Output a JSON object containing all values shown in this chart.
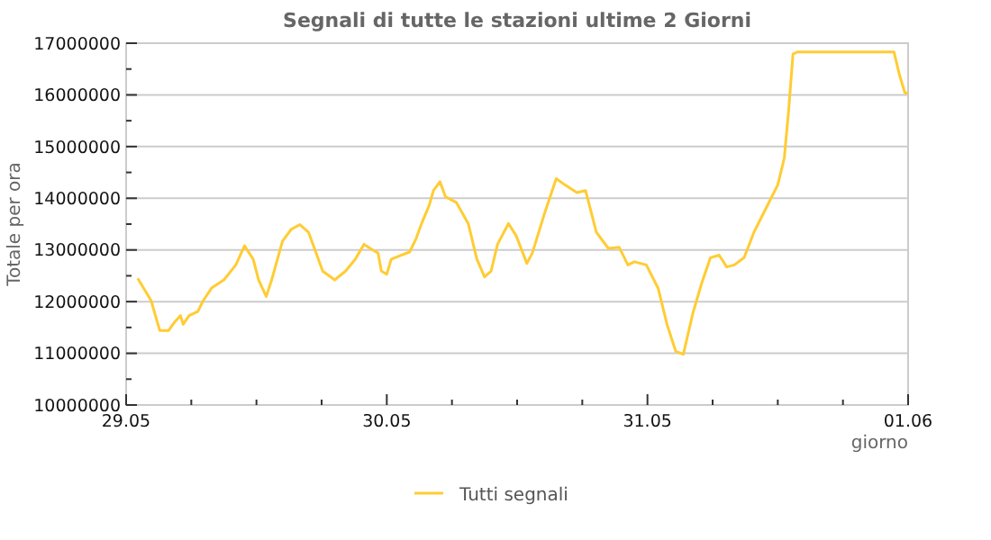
{
  "chart_data": {
    "type": "line",
    "title": "Segnali di tutte le stazioni ultime 2 Giorni",
    "xlabel": "giorno",
    "ylabel": "Totale per ora",
    "x": [
      "--05-29T01:04",
      "--05-29T02:18",
      "--05-29T03:06",
      "--05-29T03:54",
      "--05-29T04:27",
      "--05-29T05:00",
      "--05-29T05:15",
      "--05-29T05:48",
      "--05-29T06:36",
      "--05-29T07:06",
      "--05-29T07:54",
      "--05-29T09:00",
      "--05-29T10:06",
      "--05-29T10:54",
      "--05-29T11:42",
      "--05-29T12:12",
      "--05-29T12:54",
      "--05-29T13:24",
      "--05-29T14:24",
      "--05-29T15:12",
      "--05-29T16:00",
      "--05-29T16:48",
      "--05-29T17:18",
      "--05-29T18:06",
      "--05-29T19:12",
      "--05-29T20:12",
      "--05-29T21:06",
      "--05-29T21:54",
      "--05-29T22:42",
      "--05-29T23:12",
      "--05-29T23:30",
      "--05-30T00:00",
      "--05-30T00:24",
      "--05-30T01:06",
      "--05-30T02:06",
      "--05-30T02:42",
      "--05-30T03:12",
      "--05-30T03:54",
      "--05-30T04:18",
      "--05-30T04:54",
      "--05-30T05:24",
      "--05-30T06:24",
      "--05-30T07:30",
      "--05-30T08:18",
      "--05-30T09:00",
      "--05-30T09:36",
      "--05-30T10:12",
      "--05-30T11:12",
      "--05-30T11:54",
      "--05-30T12:54",
      "--05-30T13:24",
      "--05-30T14:30",
      "--05-30T15:36",
      "--05-30T16:24",
      "--05-30T17:30",
      "--05-30T18:18",
      "--05-30T19:18",
      "--05-30T20:24",
      "--05-30T21:24",
      "--05-30T22:12",
      "--05-30T22:48",
      "--05-30T23:54",
      "--05-31T01:00",
      "--05-31T01:48",
      "--05-31T02:36",
      "--05-31T03:18",
      "--05-31T04:12",
      "--05-31T05:00",
      "--05-31T05:48",
      "--05-31T06:36",
      "--05-31T07:18",
      "--05-31T08:00",
      "--05-31T08:54",
      "--05-31T09:48",
      "--05-31T10:54",
      "--05-31T12:00",
      "--05-31T12:36",
      "--05-31T13:00",
      "--05-31T13:24",
      "--05-31T13:48",
      "--05-31T22:42",
      "--05-31T23:12",
      "--05-31T23:42",
      "--06-01T00:00"
    ],
    "series": [
      {
        "name": "Tutti segnali",
        "color": "#ffcc33",
        "values": [
          12450000,
          12020000,
          11440000,
          11440000,
          11600000,
          11730000,
          11560000,
          11730000,
          11810000,
          12020000,
          12270000,
          12420000,
          12710000,
          13080000,
          12820000,
          12420000,
          12100000,
          12420000,
          13170000,
          13400000,
          13490000,
          13340000,
          13050000,
          12590000,
          12420000,
          12590000,
          12820000,
          13110000,
          13000000,
          12940000,
          12590000,
          12530000,
          12820000,
          12880000,
          12960000,
          13220000,
          13510000,
          13860000,
          14150000,
          14320000,
          14030000,
          13920000,
          13510000,
          12820000,
          12480000,
          12590000,
          13110000,
          13510000,
          13280000,
          12740000,
          12940000,
          13690000,
          14380000,
          14260000,
          14110000,
          14150000,
          13340000,
          13030000,
          13050000,
          12710000,
          12770000,
          12710000,
          12250000,
          11560000,
          11040000,
          10980000,
          11790000,
          12360000,
          12850000,
          12900000,
          12670000,
          12710000,
          12850000,
          13340000,
          13800000,
          14260000,
          14780000,
          15700000,
          16790000,
          16830000,
          16830000,
          16390000,
          16040000,
          16040000
        ]
      }
    ],
    "xlim": [
      "--05-29",
      "--06-01"
    ],
    "xticks": [
      {
        "value": "--05-29",
        "label": "29.05"
      },
      {
        "value": "--05-29T06:00",
        "label": null
      },
      {
        "value": "--05-29T12:00",
        "label": null
      },
      {
        "value": "--05-29T18:00",
        "label": null
      },
      {
        "value": "--05-30",
        "label": "30.05"
      },
      {
        "value": "--05-30T06:00",
        "label": null
      },
      {
        "value": "--05-30T12:00",
        "label": null
      },
      {
        "value": "--05-30T18:00",
        "label": null
      },
      {
        "value": "--05-31",
        "label": "31.05"
      },
      {
        "value": "--05-31T06:00",
        "label": null
      },
      {
        "value": "--05-31T12:00",
        "label": null
      },
      {
        "value": "--05-31T18:00",
        "label": null
      },
      {
        "value": "--06-01",
        "label": "01.06"
      }
    ],
    "ylim": [
      10000000,
      17000000
    ],
    "yticks": [
      10000000,
      {
        "value": 10500000,
        "label": null
      },
      11000000,
      {
        "value": 11500000,
        "label": null
      },
      12000000,
      {
        "value": 12500000,
        "label": null
      },
      13000000,
      {
        "value": 13500000,
        "label": null
      },
      14000000,
      {
        "value": 14500000,
        "label": null
      },
      15000000,
      {
        "value": 15500000,
        "label": null
      },
      16000000,
      {
        "value": 16500000,
        "label": null
      },
      17000000
    ],
    "grid": "y",
    "legend": "bottom",
    "marker": "none",
    "line_style": "solid"
  }
}
